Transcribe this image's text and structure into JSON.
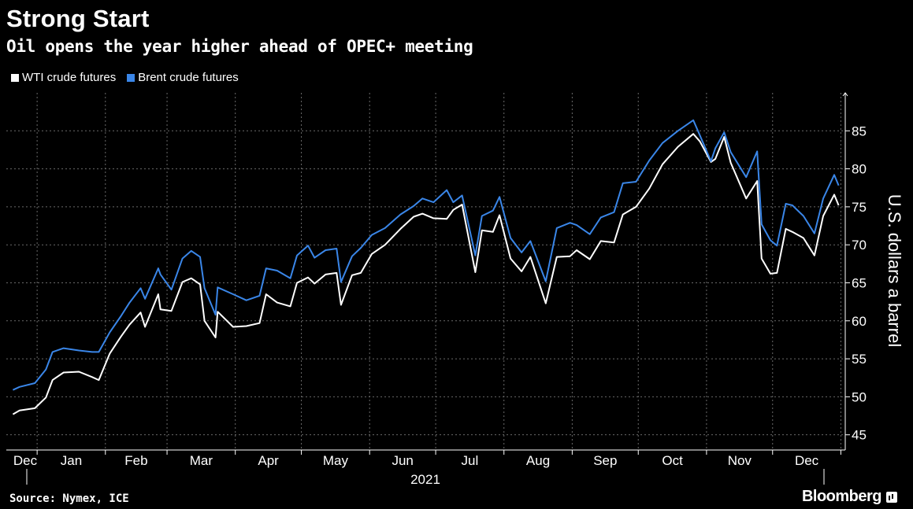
{
  "title": "Strong Start",
  "subtitle": "Oil opens the year higher ahead of OPEC+ meeting",
  "legend": [
    {
      "label": "WTI crude futures",
      "color": "#ffffff"
    },
    {
      "label": "Brent crude futures",
      "color": "#3a86e8"
    }
  ],
  "source": "Source: Nymex, ICE",
  "brand": "Bloomberg",
  "chart_data": {
    "type": "line",
    "title": "Strong Start",
    "subtitle": "Oil opens the year higher ahead of OPEC+ meeting",
    "ylabel": "U.S. dollars a barrel",
    "xlabel": "2021",
    "ylim": [
      43,
      90
    ],
    "y_ticks": [
      45,
      50,
      55,
      60,
      65,
      70,
      75,
      80,
      85
    ],
    "x_ticks": [
      "Dec",
      "Jan",
      "Feb",
      "Mar",
      "Apr",
      "May",
      "Jun",
      "Jul",
      "Aug",
      "Sep",
      "Oct",
      "Nov",
      "Dec"
    ],
    "x_year_label": "2021",
    "grid": true,
    "legend_position": "top-left",
    "series": [
      {
        "name": "WTI crude futures",
        "color": "#ffffff",
        "values": [
          [
            "2020-12-21",
            47.7
          ],
          [
            "2020-12-24",
            48.2
          ],
          [
            "2020-12-31",
            48.5
          ],
          [
            "2021-01-05",
            49.9
          ],
          [
            "2021-01-08",
            52.2
          ],
          [
            "2021-01-13",
            53.2
          ],
          [
            "2021-01-20",
            53.3
          ],
          [
            "2021-01-26",
            52.6
          ],
          [
            "2021-01-29",
            52.2
          ],
          [
            "2021-02-03",
            55.7
          ],
          [
            "2021-02-08",
            57.9
          ],
          [
            "2021-02-12",
            59.5
          ],
          [
            "2021-02-17",
            61.1
          ],
          [
            "2021-02-19",
            59.2
          ],
          [
            "2021-02-25",
            63.5
          ],
          [
            "2021-02-26",
            61.5
          ],
          [
            "2021-03-03",
            61.3
          ],
          [
            "2021-03-08",
            65.1
          ],
          [
            "2021-03-12",
            65.6
          ],
          [
            "2021-03-16",
            64.8
          ],
          [
            "2021-03-18",
            60.0
          ],
          [
            "2021-03-23",
            57.8
          ],
          [
            "2021-03-24",
            61.2
          ],
          [
            "2021-03-31",
            59.2
          ],
          [
            "2021-04-06",
            59.3
          ],
          [
            "2021-04-12",
            59.7
          ],
          [
            "2021-04-15",
            63.5
          ],
          [
            "2021-04-20",
            62.4
          ],
          [
            "2021-04-26",
            61.9
          ],
          [
            "2021-04-29",
            65.0
          ],
          [
            "2021-05-04",
            65.7
          ],
          [
            "2021-05-07",
            64.9
          ],
          [
            "2021-05-12",
            66.1
          ],
          [
            "2021-05-17",
            66.3
          ],
          [
            "2021-05-19",
            62.1
          ],
          [
            "2021-05-24",
            66.0
          ],
          [
            "2021-05-28",
            66.3
          ],
          [
            "2021-06-02",
            68.8
          ],
          [
            "2021-06-08",
            70.0
          ],
          [
            "2021-06-15",
            72.1
          ],
          [
            "2021-06-21",
            73.7
          ],
          [
            "2021-06-25",
            74.1
          ],
          [
            "2021-06-30",
            73.5
          ],
          [
            "2021-07-06",
            73.4
          ],
          [
            "2021-07-09",
            74.6
          ],
          [
            "2021-07-13",
            75.3
          ],
          [
            "2021-07-19",
            66.4
          ],
          [
            "2021-07-22",
            71.9
          ],
          [
            "2021-07-27",
            71.7
          ],
          [
            "2021-07-30",
            73.9
          ],
          [
            "2021-08-04",
            68.2
          ],
          [
            "2021-08-09",
            66.5
          ],
          [
            "2021-08-13",
            68.4
          ],
          [
            "2021-08-20",
            62.3
          ],
          [
            "2021-08-25",
            68.4
          ],
          [
            "2021-08-31",
            68.5
          ],
          [
            "2021-09-03",
            69.3
          ],
          [
            "2021-09-09",
            68.1
          ],
          [
            "2021-09-14",
            70.5
          ],
          [
            "2021-09-20",
            70.3
          ],
          [
            "2021-09-24",
            74.0
          ],
          [
            "2021-09-30",
            75.0
          ],
          [
            "2021-10-06",
            77.4
          ],
          [
            "2021-10-12",
            80.6
          ],
          [
            "2021-10-19",
            82.9
          ],
          [
            "2021-10-26",
            84.6
          ],
          [
            "2021-10-29",
            83.6
          ],
          [
            "2021-11-03",
            80.9
          ],
          [
            "2021-11-05",
            81.3
          ],
          [
            "2021-11-09",
            84.2
          ],
          [
            "2021-11-12",
            80.8
          ],
          [
            "2021-11-19",
            76.1
          ],
          [
            "2021-11-24",
            78.4
          ],
          [
            "2021-11-26",
            68.2
          ],
          [
            "2021-11-30",
            66.2
          ],
          [
            "2021-12-03",
            66.3
          ],
          [
            "2021-12-07",
            72.1
          ],
          [
            "2021-12-10",
            71.7
          ],
          [
            "2021-12-15",
            70.9
          ],
          [
            "2021-12-20",
            68.6
          ],
          [
            "2021-12-24",
            73.8
          ],
          [
            "2021-12-29",
            76.6
          ],
          [
            "2021-12-31",
            75.2
          ]
        ]
      },
      {
        "name": "Brent crude futures",
        "color": "#3a86e8",
        "values": [
          [
            "2020-12-21",
            50.9
          ],
          [
            "2020-12-24",
            51.3
          ],
          [
            "2020-12-31",
            51.8
          ],
          [
            "2021-01-05",
            53.6
          ],
          [
            "2021-01-08",
            55.9
          ],
          [
            "2021-01-13",
            56.4
          ],
          [
            "2021-01-20",
            56.1
          ],
          [
            "2021-01-26",
            55.9
          ],
          [
            "2021-01-29",
            55.9
          ],
          [
            "2021-02-03",
            58.5
          ],
          [
            "2021-02-08",
            60.6
          ],
          [
            "2021-02-12",
            62.4
          ],
          [
            "2021-02-17",
            64.3
          ],
          [
            "2021-02-19",
            62.9
          ],
          [
            "2021-02-25",
            66.9
          ],
          [
            "2021-02-26",
            66.1
          ],
          [
            "2021-03-03",
            64.1
          ],
          [
            "2021-03-08",
            68.2
          ],
          [
            "2021-03-12",
            69.2
          ],
          [
            "2021-03-16",
            68.4
          ],
          [
            "2021-03-18",
            64.3
          ],
          [
            "2021-03-23",
            60.8
          ],
          [
            "2021-03-24",
            64.4
          ],
          [
            "2021-03-31",
            63.5
          ],
          [
            "2021-04-06",
            62.7
          ],
          [
            "2021-04-12",
            63.3
          ],
          [
            "2021-04-15",
            66.9
          ],
          [
            "2021-04-20",
            66.6
          ],
          [
            "2021-04-26",
            65.6
          ],
          [
            "2021-04-29",
            68.6
          ],
          [
            "2021-05-04",
            69.9
          ],
          [
            "2021-05-07",
            68.3
          ],
          [
            "2021-05-12",
            69.3
          ],
          [
            "2021-05-17",
            69.5
          ],
          [
            "2021-05-19",
            65.1
          ],
          [
            "2021-05-24",
            68.5
          ],
          [
            "2021-05-28",
            69.6
          ],
          [
            "2021-06-02",
            71.3
          ],
          [
            "2021-06-08",
            72.2
          ],
          [
            "2021-06-15",
            74.0
          ],
          [
            "2021-06-21",
            75.1
          ],
          [
            "2021-06-25",
            76.1
          ],
          [
            "2021-06-30",
            75.6
          ],
          [
            "2021-07-06",
            77.2
          ],
          [
            "2021-07-09",
            75.6
          ],
          [
            "2021-07-13",
            76.5
          ],
          [
            "2021-07-19",
            68.6
          ],
          [
            "2021-07-22",
            73.8
          ],
          [
            "2021-07-27",
            74.5
          ],
          [
            "2021-07-30",
            76.3
          ],
          [
            "2021-08-04",
            70.9
          ],
          [
            "2021-08-09",
            69.0
          ],
          [
            "2021-08-13",
            70.5
          ],
          [
            "2021-08-20",
            65.2
          ],
          [
            "2021-08-25",
            72.2
          ],
          [
            "2021-08-31",
            72.9
          ],
          [
            "2021-09-03",
            72.6
          ],
          [
            "2021-09-09",
            71.4
          ],
          [
            "2021-09-14",
            73.6
          ],
          [
            "2021-09-20",
            74.3
          ],
          [
            "2021-09-24",
            78.1
          ],
          [
            "2021-09-30",
            78.3
          ],
          [
            "2021-10-06",
            81.1
          ],
          [
            "2021-10-12",
            83.4
          ],
          [
            "2021-10-19",
            85.0
          ],
          [
            "2021-10-26",
            86.4
          ],
          [
            "2021-10-29",
            84.4
          ],
          [
            "2021-11-03",
            81.0
          ],
          [
            "2021-11-05",
            82.7
          ],
          [
            "2021-11-09",
            84.8
          ],
          [
            "2021-11-12",
            82.2
          ],
          [
            "2021-11-19",
            78.9
          ],
          [
            "2021-11-24",
            82.3
          ],
          [
            "2021-11-26",
            72.7
          ],
          [
            "2021-11-30",
            70.6
          ],
          [
            "2021-12-03",
            69.9
          ],
          [
            "2021-12-07",
            75.4
          ],
          [
            "2021-12-10",
            75.2
          ],
          [
            "2021-12-15",
            73.8
          ],
          [
            "2021-12-20",
            71.5
          ],
          [
            "2021-12-24",
            76.1
          ],
          [
            "2021-12-29",
            79.2
          ],
          [
            "2021-12-31",
            77.8
          ]
        ]
      }
    ]
  }
}
